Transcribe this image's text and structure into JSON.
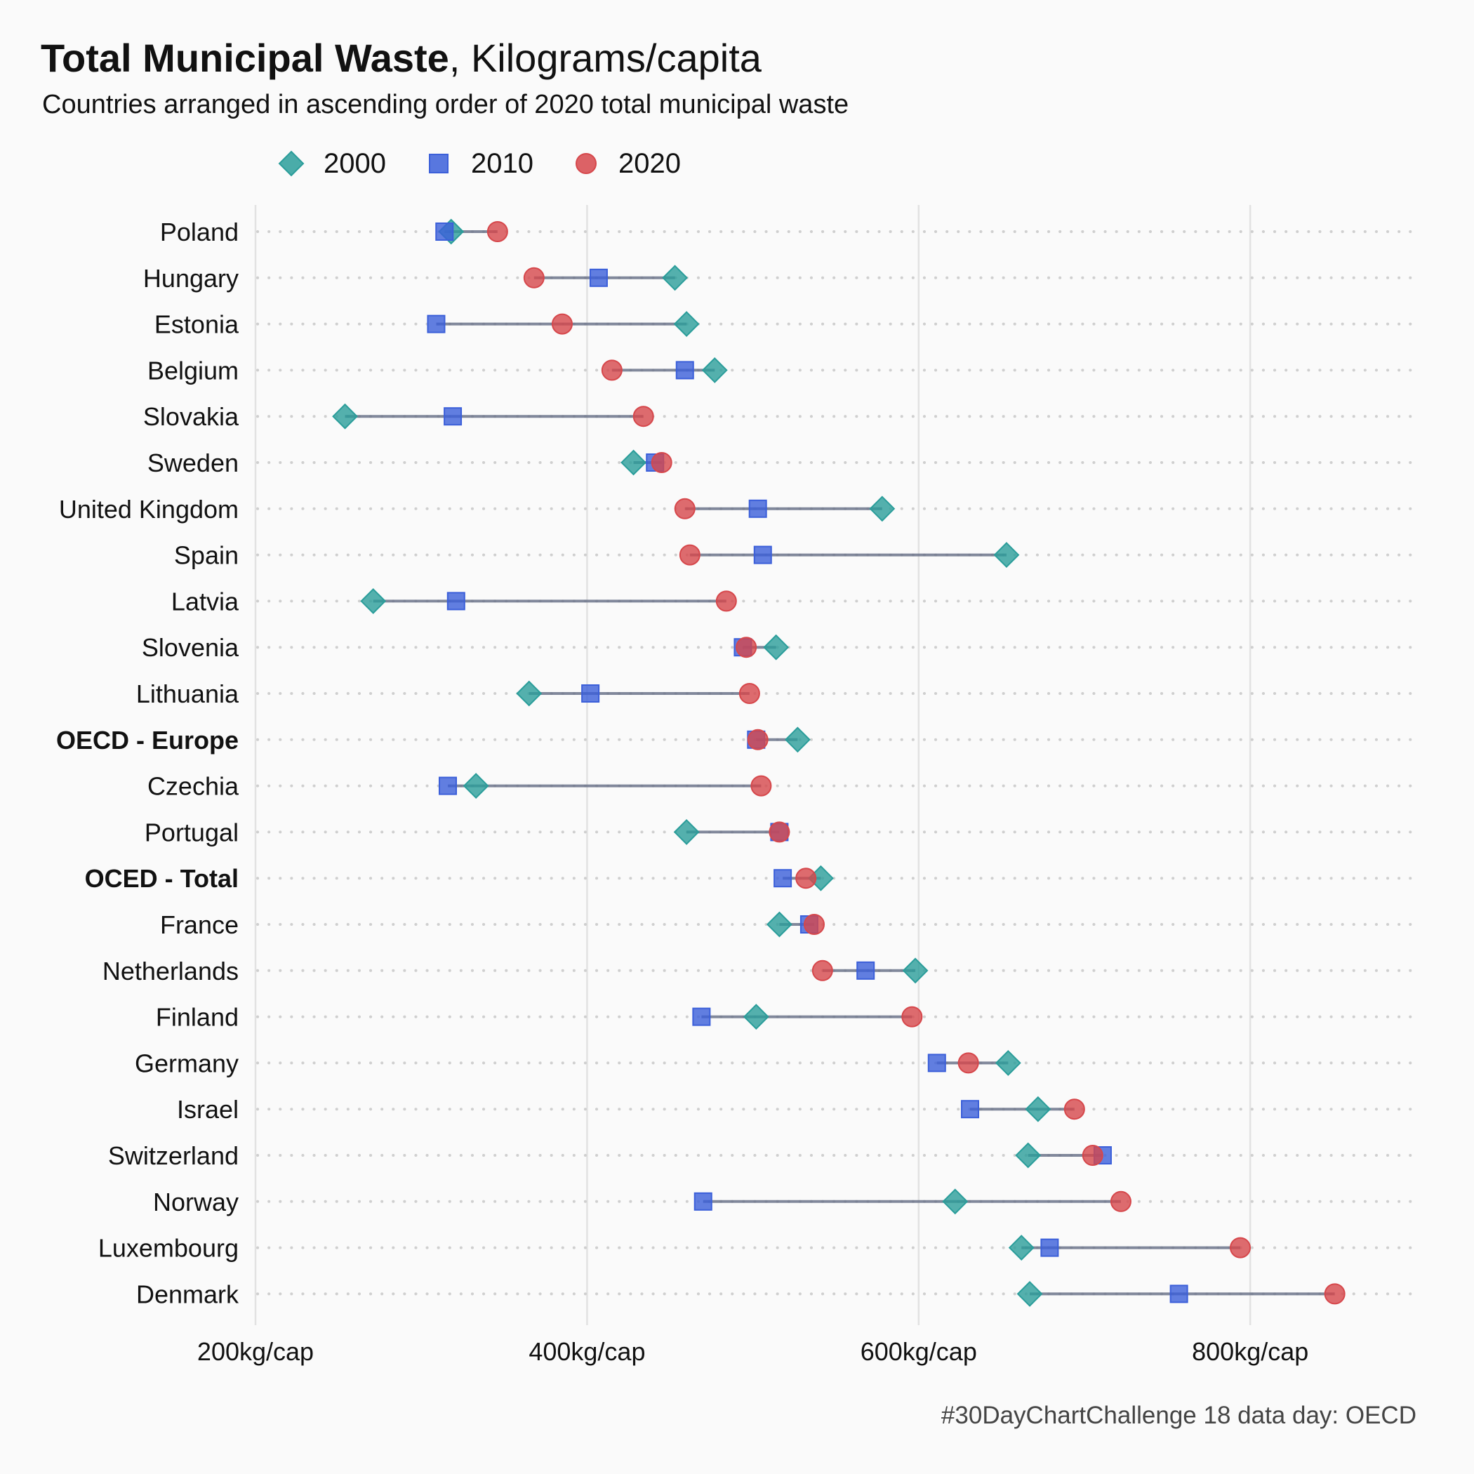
{
  "title": {
    "bold": "Total Municipal  Waste",
    "rest": ", Kilograms/capita"
  },
  "subtitle": "Countries arranged in ascending order of 2020 total municipal waste",
  "caption": "#30DayChartChallenge 18 data day: OECD",
  "legend": [
    {
      "label": "2000",
      "shape": "diamond",
      "color": "#2a9d9a"
    },
    {
      "label": "2010",
      "shape": "square",
      "color": "#3b5fd9"
    },
    {
      "label": "2020",
      "shape": "circle",
      "color": "#d6474b"
    }
  ],
  "colors": {
    "segment": "#6b738a",
    "grid": "#e2e2e2",
    "dots": "#cfcfcf"
  },
  "chart_data": {
    "type": "scatter",
    "xlabel": "",
    "ylabel": "",
    "xlim": [
      200,
      900
    ],
    "x_ticks": [
      200,
      400,
      600,
      800
    ],
    "x_tick_labels": [
      "200kg/cap",
      "400kg/cap",
      "600kg/cap",
      "800kg/cap"
    ],
    "grid": true,
    "legend_position": "top-left",
    "categories": [
      "Poland",
      "Hungary",
      "Estonia",
      "Belgium",
      "Slovakia",
      "Sweden",
      "United Kingdom",
      "Spain",
      "Latvia",
      "Slovenia",
      "Lithuania",
      "OECD - Europe",
      "Czechia",
      "Portugal",
      "OCED - Total",
      "France",
      "Netherlands",
      "Finland",
      "Germany",
      "Israel",
      "Switzerland",
      "Norway",
      "Luxembourg",
      "Denmark"
    ],
    "bold_categories": [
      "OECD - Europe",
      "OCED - Total"
    ],
    "series": [
      {
        "name": "2000",
        "values": [
          318,
          453,
          460,
          477,
          254,
          428,
          578,
          653,
          271,
          514,
          365,
          527,
          333,
          460,
          541,
          516,
          598,
          502,
          654,
          672,
          666,
          622,
          662,
          667
        ]
      },
      {
        "name": "2010",
        "values": [
          314,
          407,
          309,
          459,
          319,
          441,
          503,
          506,
          321,
          494,
          402,
          502,
          316,
          516,
          518,
          534,
          568,
          469,
          611,
          631,
          711,
          470,
          679,
          757
        ]
      },
      {
        "name": "2020",
        "values": [
          346,
          368,
          385,
          415,
          434,
          445,
          459,
          462,
          484,
          496,
          498,
          503,
          505,
          516,
          532,
          537,
          542,
          596,
          630,
          694,
          705,
          722,
          794,
          851
        ]
      }
    ]
  }
}
